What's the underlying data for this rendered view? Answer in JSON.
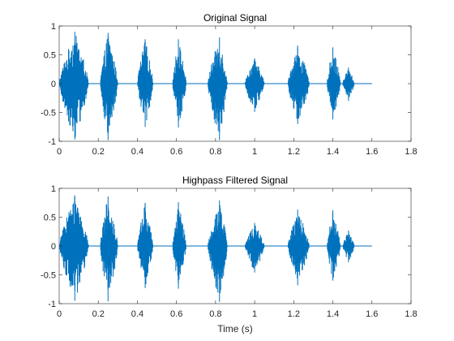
{
  "chart_data": [
    {
      "type": "line",
      "title": "Original Signal",
      "xlabel": "",
      "ylabel": "",
      "xlim": [
        0,
        1.8
      ],
      "ylim": [
        -1,
        1
      ],
      "x_ticks": [
        0,
        0.2,
        0.4,
        0.6,
        0.8,
        1,
        1.2,
        1.4,
        1.6,
        1.8
      ],
      "x_tick_labels": [
        "0",
        "0.2",
        "0.4",
        "0.6",
        "0.8",
        "1",
        "1.2",
        "1.4",
        "1.6",
        "1.8"
      ],
      "y_ticks": [
        -1,
        -0.5,
        0,
        0.5,
        1
      ],
      "y_tick_labels": [
        "-1",
        "-0.5",
        "0",
        "0.5",
        "1"
      ],
      "grid": false,
      "line_color": "#0072BD",
      "duration_s": 1.6,
      "bursts": [
        {
          "t_start": 0.0,
          "t_end": 0.15,
          "peak_time": 0.08,
          "max": 0.9,
          "min": -0.97
        },
        {
          "t_start": 0.21,
          "t_end": 0.3,
          "peak_time": 0.25,
          "max": 0.88,
          "min": -0.98
        },
        {
          "t_start": 0.4,
          "t_end": 0.48,
          "peak_time": 0.44,
          "max": 0.77,
          "min": -0.75
        },
        {
          "t_start": 0.58,
          "t_end": 0.65,
          "peak_time": 0.61,
          "max": 0.77,
          "min": -0.76
        },
        {
          "t_start": 0.76,
          "t_end": 0.86,
          "peak_time": 0.82,
          "max": 0.8,
          "min": -0.98
        },
        {
          "t_start": 0.95,
          "t_end": 1.05,
          "peak_time": 1.0,
          "max": 0.44,
          "min": -0.49
        },
        {
          "t_start": 1.17,
          "t_end": 1.28,
          "peak_time": 1.22,
          "max": 0.66,
          "min": -0.7
        },
        {
          "t_start": 1.37,
          "t_end": 1.44,
          "peak_time": 1.4,
          "max": 0.63,
          "min": -0.62
        },
        {
          "t_start": 1.45,
          "t_end": 1.51,
          "peak_time": 1.48,
          "max": 0.28,
          "min": -0.3
        }
      ]
    },
    {
      "type": "line",
      "title": "Highpass Filtered Signal",
      "xlabel": "Time (s)",
      "ylabel": "",
      "xlim": [
        0,
        1.8
      ],
      "ylim": [
        -1,
        1
      ],
      "x_ticks": [
        0,
        0.2,
        0.4,
        0.6,
        0.8,
        1,
        1.2,
        1.4,
        1.6,
        1.8
      ],
      "x_tick_labels": [
        "0",
        "0.2",
        "0.4",
        "0.6",
        "0.8",
        "1",
        "1.2",
        "1.4",
        "1.6",
        "1.8"
      ],
      "y_ticks": [
        -1,
        -0.5,
        0,
        0.5,
        1
      ],
      "y_tick_labels": [
        "-1",
        "-0.5",
        "0",
        "0.5",
        "1"
      ],
      "grid": false,
      "line_color": "#0072BD",
      "duration_s": 1.6,
      "bursts": [
        {
          "t_start": 0.0,
          "t_end": 0.15,
          "peak_time": 0.08,
          "max": 0.88,
          "min": -0.95
        },
        {
          "t_start": 0.21,
          "t_end": 0.3,
          "peak_time": 0.25,
          "max": 0.86,
          "min": -0.96
        },
        {
          "t_start": 0.4,
          "t_end": 0.48,
          "peak_time": 0.44,
          "max": 0.75,
          "min": -0.73
        },
        {
          "t_start": 0.58,
          "t_end": 0.65,
          "peak_time": 0.61,
          "max": 0.76,
          "min": -0.74
        },
        {
          "t_start": 0.76,
          "t_end": 0.86,
          "peak_time": 0.82,
          "max": 0.79,
          "min": -0.97
        },
        {
          "t_start": 0.95,
          "t_end": 1.05,
          "peak_time": 1.0,
          "max": 0.4,
          "min": -0.46
        },
        {
          "t_start": 1.17,
          "t_end": 1.28,
          "peak_time": 1.22,
          "max": 0.63,
          "min": -0.68
        },
        {
          "t_start": 1.37,
          "t_end": 1.44,
          "peak_time": 1.4,
          "max": 0.62,
          "min": -0.6
        },
        {
          "t_start": 1.45,
          "t_end": 1.51,
          "peak_time": 1.48,
          "max": 0.27,
          "min": -0.28
        }
      ]
    }
  ]
}
